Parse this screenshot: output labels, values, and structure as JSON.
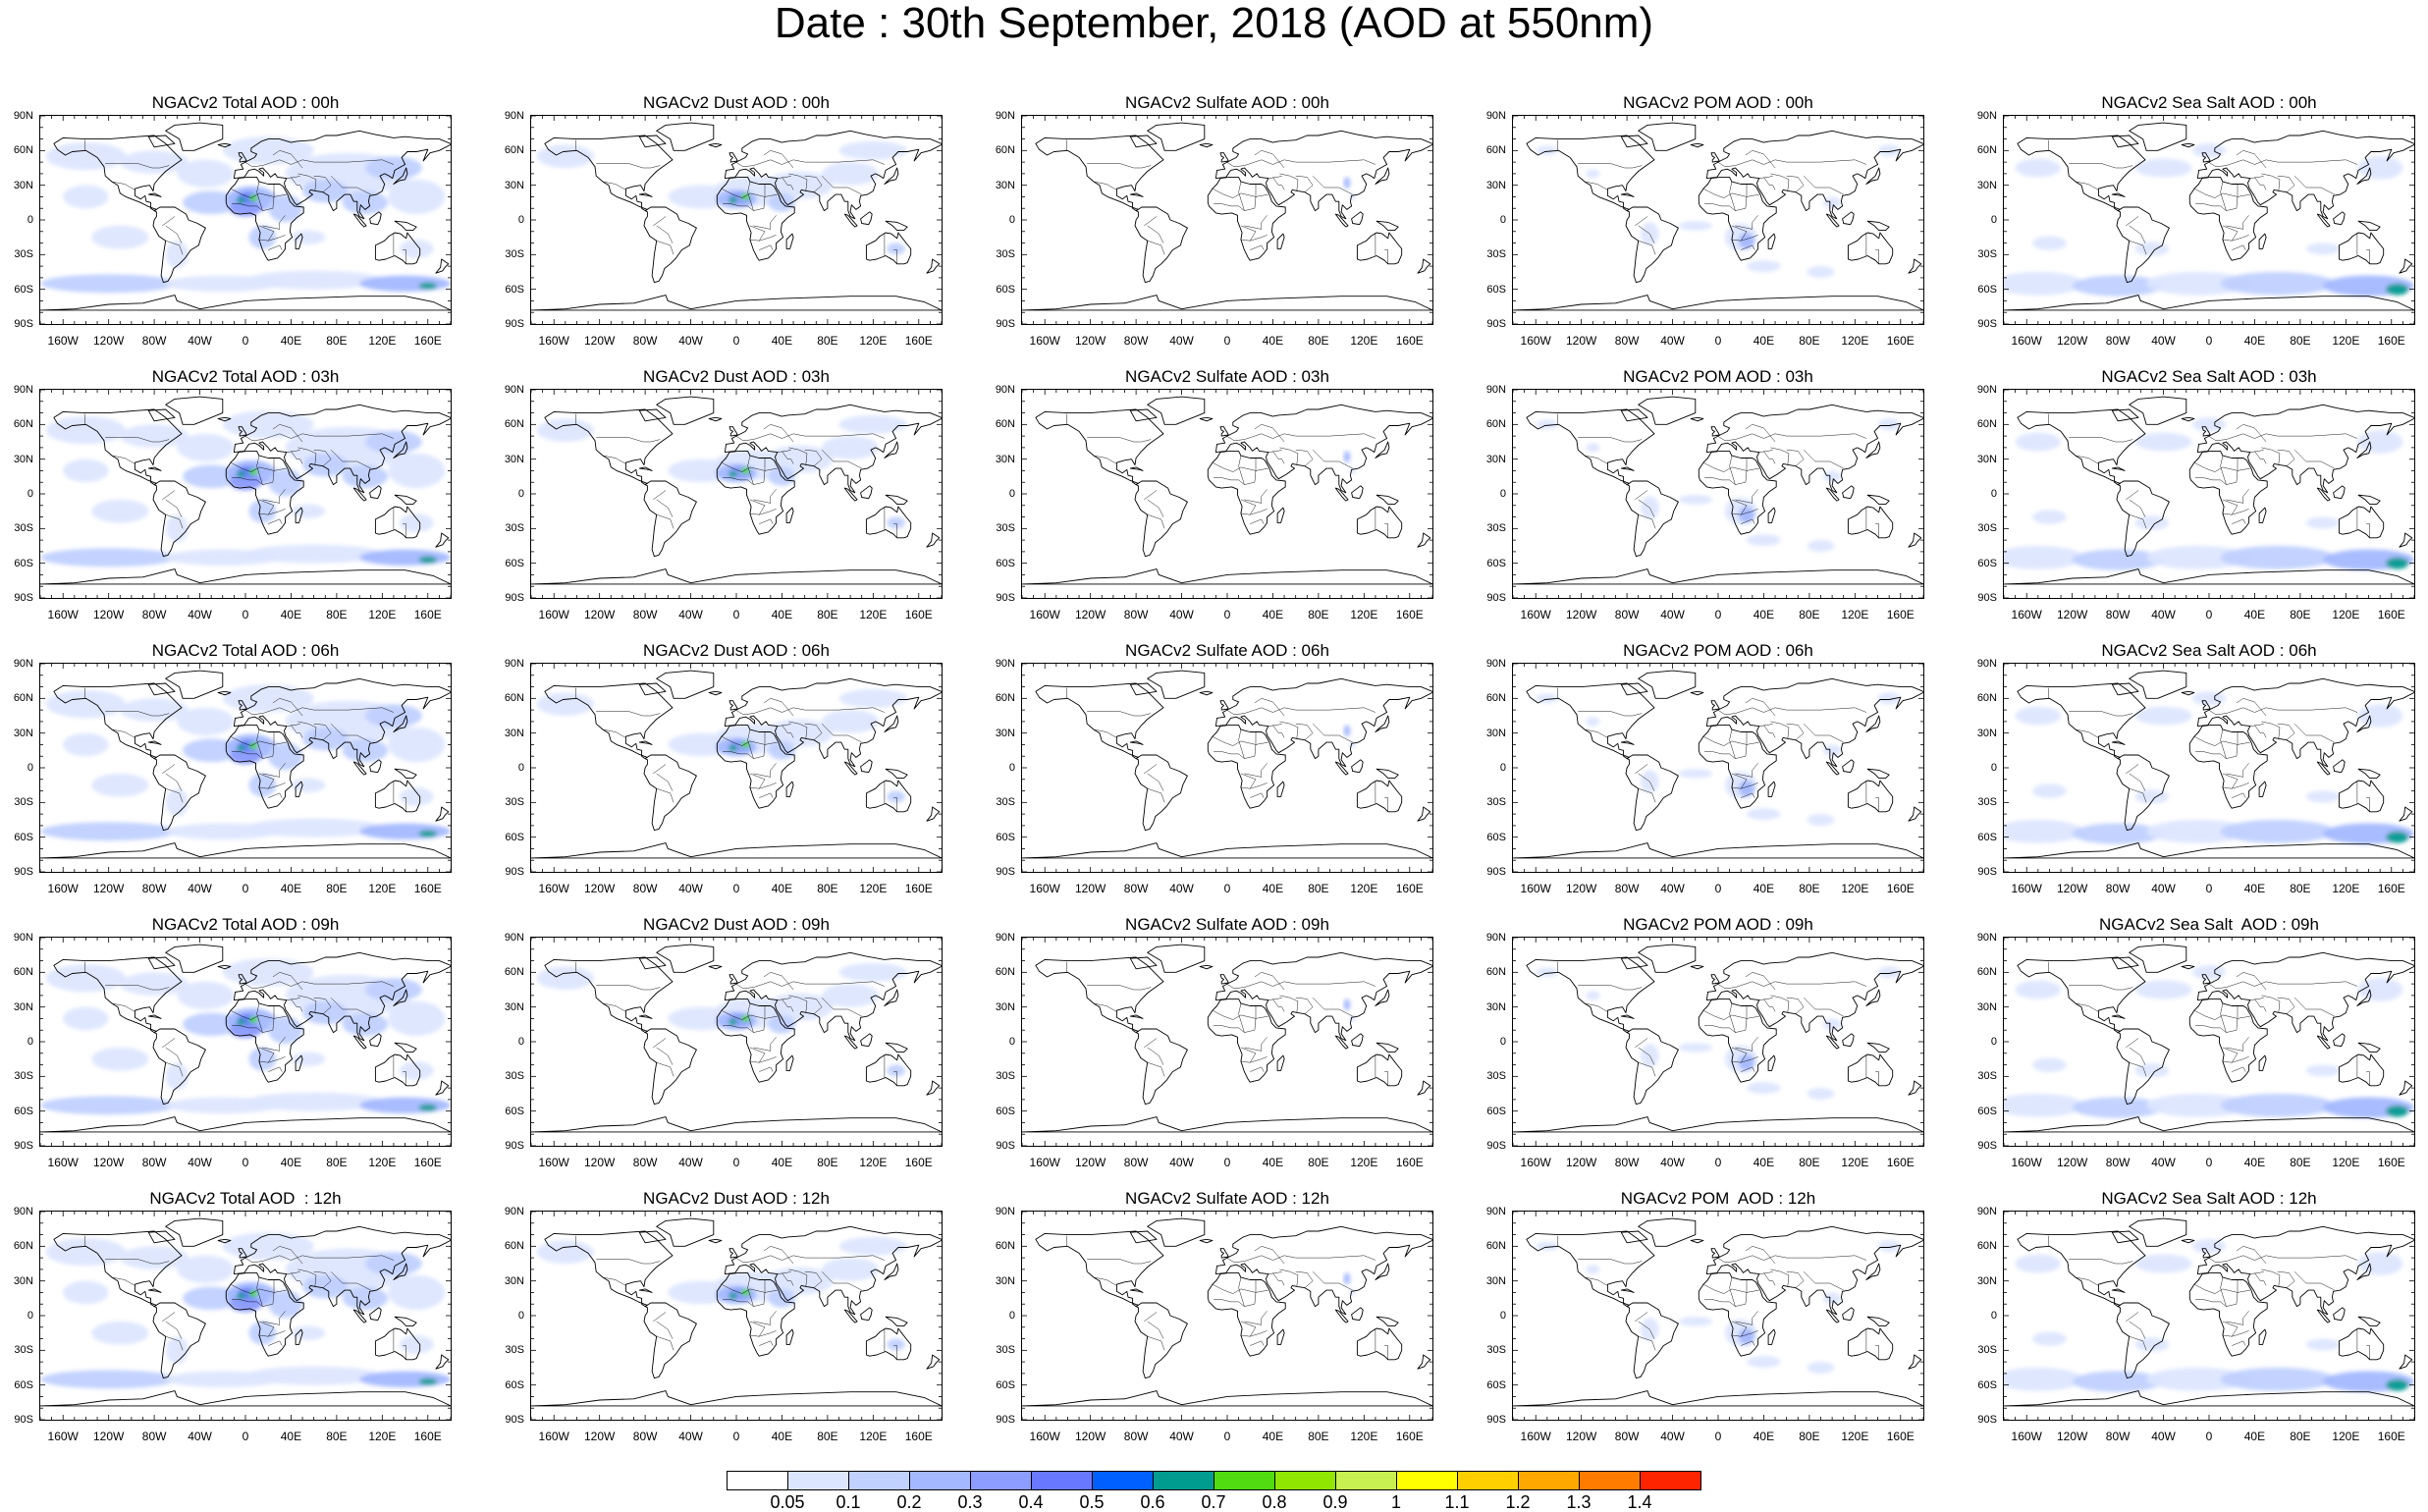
{
  "title": "Date : 30th September, 2018 (AOD at 550nm)",
  "lat_labels": [
    "90N",
    "60N",
    "30N",
    "0",
    "30S",
    "60S",
    "90S"
  ],
  "lon_labels": [
    "160W",
    "120W",
    "80W",
    "40W",
    "0",
    "40E",
    "80E",
    "120E",
    "160E"
  ],
  "panels": [
    {
      "title": "NGACv2 Total AOD : 00h",
      "var": "total",
      "hour": "00h"
    },
    {
      "title": "NGACv2 Dust AOD : 00h",
      "var": "dust",
      "hour": "00h"
    },
    {
      "title": "NGACv2 Sulfate AOD : 00h",
      "var": "sulfate",
      "hour": "00h"
    },
    {
      "title": "NGACv2 POM AOD : 00h",
      "var": "pom",
      "hour": "00h"
    },
    {
      "title": "NGACv2 Sea Salt AOD : 00h",
      "var": "seasalt",
      "hour": "00h"
    },
    {
      "title": "NGACv2 Total AOD : 03h",
      "var": "total",
      "hour": "03h"
    },
    {
      "title": "NGACv2 Dust AOD : 03h",
      "var": "dust",
      "hour": "03h"
    },
    {
      "title": "NGACv2 Sulfate AOD : 03h",
      "var": "sulfate",
      "hour": "03h"
    },
    {
      "title": "NGACv2 POM AOD : 03h",
      "var": "pom",
      "hour": "03h"
    },
    {
      "title": "NGACv2 Sea Salt AOD : 03h",
      "var": "seasalt",
      "hour": "03h"
    },
    {
      "title": "NGACv2 Total AOD : 06h",
      "var": "total",
      "hour": "06h"
    },
    {
      "title": "NGACv2 Dust AOD : 06h",
      "var": "dust",
      "hour": "06h"
    },
    {
      "title": "NGACv2 Sulfate AOD : 06h",
      "var": "sulfate",
      "hour": "06h"
    },
    {
      "title": "NGACv2 POM AOD : 06h",
      "var": "pom",
      "hour": "06h"
    },
    {
      "title": "NGACv2 Sea Salt AOD : 06h",
      "var": "seasalt",
      "hour": "06h"
    },
    {
      "title": "NGACv2 Total AOD : 09h",
      "var": "total",
      "hour": "09h"
    },
    {
      "title": "NGACv2 Dust AOD : 09h",
      "var": "dust",
      "hour": "09h"
    },
    {
      "title": "NGACv2 Sulfate AOD : 09h",
      "var": "sulfate",
      "hour": "09h"
    },
    {
      "title": "NGACv2 POM AOD : 09h",
      "var": "pom",
      "hour": "09h"
    },
    {
      "title": "NGACv2 Sea Salt  AOD : 09h",
      "var": "seasalt",
      "hour": "09h"
    },
    {
      "title": "NGACv2 Total AOD  : 12h",
      "var": "total",
      "hour": "12h"
    },
    {
      "title": "NGACv2 Dust AOD : 12h",
      "var": "dust",
      "hour": "12h"
    },
    {
      "title": "NGACv2 Sulfate AOD : 12h",
      "var": "sulfate",
      "hour": "12h"
    },
    {
      "title": "NGACv2 POM  AOD : 12h",
      "var": "pom",
      "hour": "12h"
    },
    {
      "title": "NGACv2 Sea Salt AOD : 12h",
      "var": "seasalt",
      "hour": "12h"
    }
  ],
  "colorbar": {
    "labels": [
      "0.05",
      "0.1",
      "0.2",
      "0.3",
      "0.4",
      "0.5",
      "0.6",
      "0.7",
      "0.8",
      "0.9",
      "1",
      "1.1",
      "1.2",
      "1.3",
      "1.4"
    ],
    "colors": [
      "#ffffff",
      "#dde6ff",
      "#c0d0ff",
      "#a4b8ff",
      "#8c9cff",
      "#6878ff",
      "#0060ff",
      "#009c90",
      "#50dc10",
      "#90e600",
      "#c8f050",
      "#ffff00",
      "#ffd000",
      "#ffa800",
      "#ff7c00",
      "#ff2400"
    ]
  }
}
